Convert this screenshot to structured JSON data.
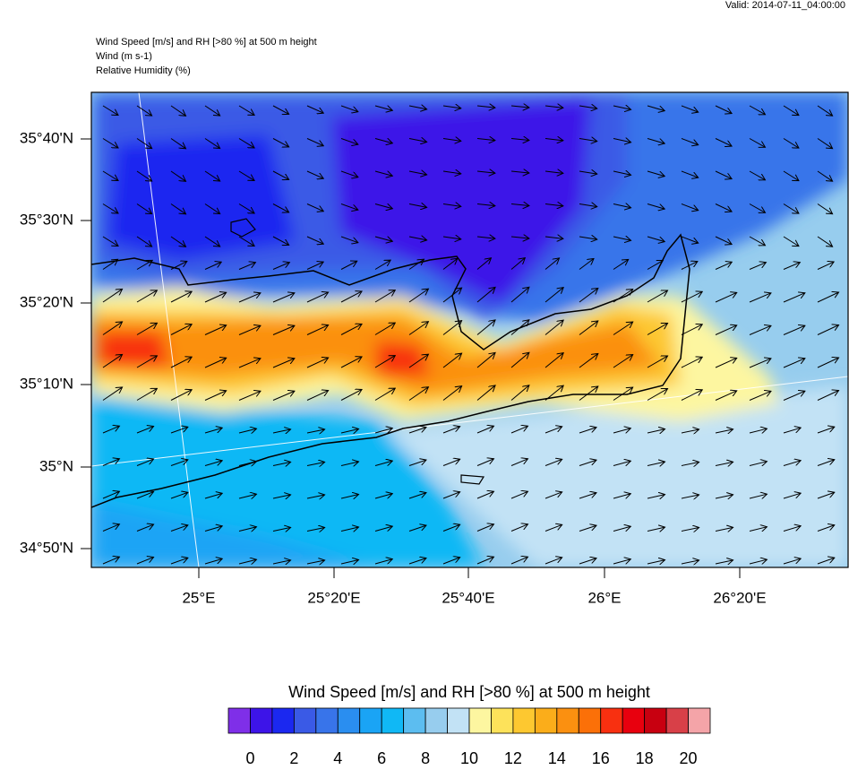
{
  "header": {
    "valid": "Valid: 2014-07-11_04:00:00",
    "title_lines": [
      "Wind Speed [m/s] and RH [>80 %] at 500 m height",
      "Wind   (m s-1)",
      "Relative Humidity   (%)"
    ]
  },
  "map": {
    "lat_labels": [
      "35°40'N",
      "35°30'N",
      "35°20'N",
      "35°10'N",
      "35°N",
      "34°50'N"
    ],
    "lon_labels": [
      "25°E",
      "25°20'E",
      "25°40'E",
      "26°E",
      "26°20'E"
    ]
  },
  "colorbar": {
    "title": "Wind Speed [m/s] and RH [>80 %] at 500 m height",
    "lim": [
      -1,
      21
    ],
    "colors": [
      "#7f2fe8",
      "#3d14e8",
      "#1b28f0",
      "#3a5ae6",
      "#3874ea",
      "#2a8ef0",
      "#1aa4f5",
      "#10b8f5",
      "#5cbdf0",
      "#97cdee",
      "#c2e2f5",
      "#fdf6a0",
      "#fde25a",
      "#fdc830",
      "#fbad1a",
      "#fb9010",
      "#fb7008",
      "#f83010",
      "#e8000e",
      "#c80010",
      "#d84048",
      "#f4a4a8"
    ],
    "ticks": [
      0,
      2,
      4,
      6,
      8,
      10,
      12,
      14,
      16,
      18,
      20
    ]
  }
}
